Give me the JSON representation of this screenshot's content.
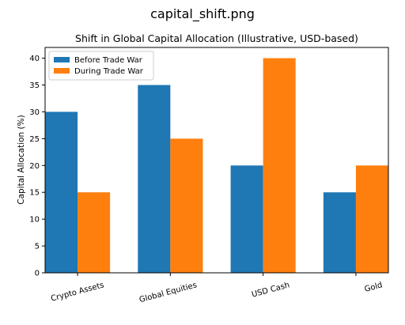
{
  "file_title": "capital_shift.png",
  "chart_data": {
    "type": "bar",
    "title": "Shift in Global Capital Allocation (Illustrative, USD-based)",
    "xlabel": "",
    "ylabel": "Capital Allocation (%)",
    "categories": [
      "Crypto Assets",
      "Global Equities",
      "USD Cash",
      "Gold"
    ],
    "series": [
      {
        "name": "Before Trade War",
        "values": [
          30,
          35,
          20,
          15
        ],
        "color": "#1f77b4"
      },
      {
        "name": "During Trade War",
        "values": [
          15,
          25,
          40,
          20
        ],
        "color": "#ff7f0e"
      }
    ],
    "ylim": [
      0,
      42
    ],
    "yticks": [
      0,
      5,
      10,
      15,
      20,
      25,
      30,
      35,
      40
    ],
    "grid": false,
    "legend_position": "top-left"
  }
}
